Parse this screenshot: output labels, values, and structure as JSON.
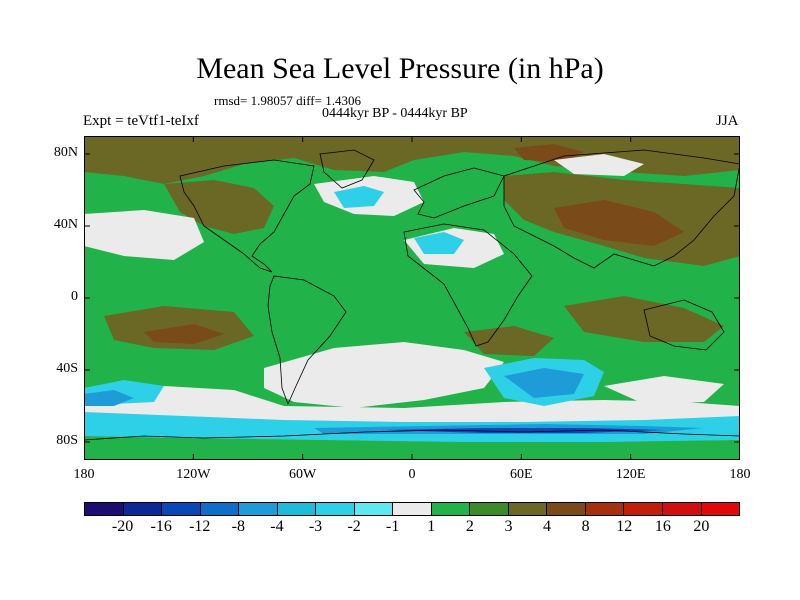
{
  "title": "Mean Sea Level Pressure (in hPa)",
  "stats": "rmsd= 1.98057 diff= 1.4306",
  "period": "0444kyr BP - 0444kyr BP",
  "experiment": "Expt = teVtf1-teIxf",
  "season": "JJA",
  "map": {
    "lat_labels": [
      "80N",
      "40N",
      "0",
      "40S",
      "80S"
    ],
    "lon_labels": [
      "180",
      "120W",
      "60W",
      "0",
      "60E",
      "120E",
      "180"
    ],
    "lat_values": [
      80,
      40,
      0,
      -40,
      -80
    ],
    "lon_values": [
      -180,
      -120,
      -60,
      0,
      60,
      120,
      180
    ],
    "lon_range": [
      -180,
      180
    ],
    "lat_range": [
      -90,
      90
    ],
    "colors": {
      "background": "#22b24a",
      "dark_green": "#3c8a2a",
      "olive": "#6a6824",
      "brown": "#7a4a18",
      "neutral": "#ebebeb",
      "light_cyan": "#2ed0e8",
      "mid_blue": "#1e9cd8",
      "dark_blue": "#0a48b8",
      "coastline": "#000000"
    }
  },
  "colorbar": {
    "labels": [
      "-20",
      "-16",
      "-12",
      "-8",
      "-4",
      "-3",
      "-2",
      "-1",
      "1",
      "2",
      "3",
      "4",
      "8",
      "12",
      "16",
      "20"
    ],
    "colors": [
      "#1c0e70",
      "#0b2a96",
      "#0a48b8",
      "#0e6ec8",
      "#1e9cd8",
      "#1ebcd8",
      "#2ed0e8",
      "#5ee8f0",
      "#ebebeb",
      "#22b24a",
      "#3c8a2a",
      "#6a6824",
      "#7a4a18",
      "#a4300e",
      "#c0200a",
      "#d01010",
      "#e00808"
    ]
  }
}
